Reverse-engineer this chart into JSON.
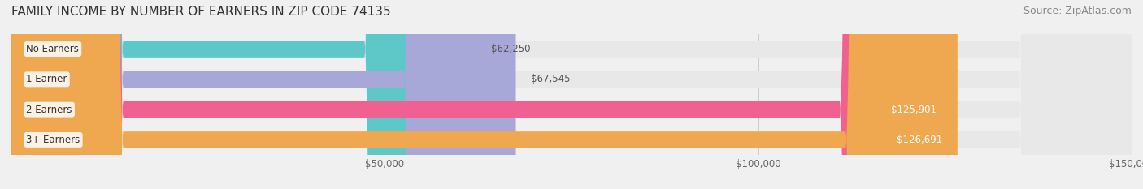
{
  "title": "FAMILY INCOME BY NUMBER OF EARNERS IN ZIP CODE 74135",
  "source": "Source: ZipAtlas.com",
  "categories": [
    "No Earners",
    "1 Earner",
    "2 Earners",
    "3+ Earners"
  ],
  "values": [
    62250,
    67545,
    125901,
    126691
  ],
  "bar_colors": [
    "#5ec8c8",
    "#a8a8d8",
    "#f06090",
    "#f0a850"
  ],
  "label_colors": [
    "#333333",
    "#333333",
    "#ffffff",
    "#ffffff"
  ],
  "value_labels": [
    "$62,250",
    "$67,545",
    "$125,901",
    "$126,691"
  ],
  "xmin": 0,
  "xmax": 150000,
  "xticks": [
    50000,
    100000,
    150000
  ],
  "xtick_labels": [
    "$50,000",
    "$100,000",
    "$150,000"
  ],
  "background_color": "#f0f0f0",
  "bar_background_color": "#e8e8e8",
  "title_fontsize": 11,
  "source_fontsize": 9,
  "bar_height": 0.55,
  "figsize": [
    14.06,
    2.33
  ],
  "dpi": 100
}
